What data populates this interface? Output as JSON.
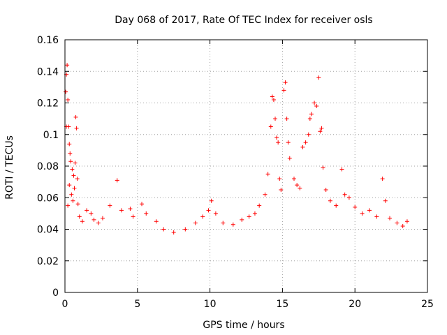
{
  "chart_data": {
    "type": "scatter",
    "title": "Day 068 of 2017, Rate Of TEC Index for receiver osls",
    "xlabel": "GPS time / hours",
    "ylabel": "ROTI / TECUs",
    "xlim": [
      0,
      25
    ],
    "ylim": [
      0,
      0.16
    ],
    "grid": true,
    "marker": "plus",
    "color": "#ff0000",
    "x_ticks": [
      {
        "value": 0,
        "label": "0"
      },
      {
        "value": 5,
        "label": "5"
      },
      {
        "value": 10,
        "label": "10"
      },
      {
        "value": 15,
        "label": "15"
      },
      {
        "value": 20,
        "label": "20"
      },
      {
        "value": 25,
        "label": "25"
      }
    ],
    "y_ticks": [
      {
        "value": 0,
        "label": "0"
      },
      {
        "value": 0.02,
        "label": "0.02"
      },
      {
        "value": 0.04,
        "label": "0.04"
      },
      {
        "value": 0.06,
        "label": "0.06"
      },
      {
        "value": 0.08,
        "label": "0.08"
      },
      {
        "value": 0.1,
        "label": "0.1"
      },
      {
        "value": 0.12,
        "label": "0.12"
      },
      {
        "value": 0.14,
        "label": "0.14"
      },
      {
        "value": 0.16,
        "label": "0.16"
      }
    ],
    "series": [
      {
        "name": "ROTI",
        "points": [
          [
            0.05,
            0.127
          ],
          [
            0.1,
            0.138
          ],
          [
            0.15,
            0.144
          ],
          [
            0.2,
            0.122
          ],
          [
            0.1,
            0.105
          ],
          [
            0.25,
            0.105
          ],
          [
            0.3,
            0.094
          ],
          [
            0.35,
            0.088
          ],
          [
            0.4,
            0.083
          ],
          [
            0.5,
            0.078
          ],
          [
            0.6,
            0.074
          ],
          [
            0.7,
            0.082
          ],
          [
            0.75,
            0.111
          ],
          [
            0.8,
            0.104
          ],
          [
            0.85,
            0.072
          ],
          [
            0.3,
            0.068
          ],
          [
            0.45,
            0.062
          ],
          [
            0.55,
            0.058
          ],
          [
            0.65,
            0.066
          ],
          [
            0.2,
            0.055
          ],
          [
            0.9,
            0.056
          ],
          [
            1.0,
            0.048
          ],
          [
            1.2,
            0.045
          ],
          [
            1.5,
            0.052
          ],
          [
            1.8,
            0.05
          ],
          [
            2.0,
            0.046
          ],
          [
            2.3,
            0.044
          ],
          [
            2.6,
            0.047
          ],
          [
            3.1,
            0.055
          ],
          [
            3.6,
            0.071
          ],
          [
            3.9,
            0.052
          ],
          [
            4.5,
            0.053
          ],
          [
            4.7,
            0.048
          ],
          [
            5.3,
            0.056
          ],
          [
            5.6,
            0.05
          ],
          [
            6.3,
            0.045
          ],
          [
            6.8,
            0.04
          ],
          [
            7.5,
            0.038
          ],
          [
            8.3,
            0.04
          ],
          [
            9.0,
            0.044
          ],
          [
            9.5,
            0.048
          ],
          [
            9.9,
            0.052
          ],
          [
            10.1,
            0.058
          ],
          [
            10.4,
            0.05
          ],
          [
            10.9,
            0.044
          ],
          [
            11.6,
            0.043
          ],
          [
            12.2,
            0.046
          ],
          [
            12.7,
            0.048
          ],
          [
            13.1,
            0.05
          ],
          [
            13.4,
            0.055
          ],
          [
            13.8,
            0.062
          ],
          [
            14.0,
            0.075
          ],
          [
            14.2,
            0.105
          ],
          [
            14.3,
            0.124
          ],
          [
            14.4,
            0.122
          ],
          [
            14.5,
            0.11
          ],
          [
            14.6,
            0.098
          ],
          [
            14.7,
            0.095
          ],
          [
            14.8,
            0.072
          ],
          [
            14.9,
            0.065
          ],
          [
            15.1,
            0.128
          ],
          [
            15.2,
            0.133
          ],
          [
            15.3,
            0.11
          ],
          [
            15.4,
            0.095
          ],
          [
            15.5,
            0.085
          ],
          [
            15.8,
            0.072
          ],
          [
            16.0,
            0.068
          ],
          [
            16.2,
            0.066
          ],
          [
            16.4,
            0.092
          ],
          [
            16.6,
            0.095
          ],
          [
            16.8,
            0.1
          ],
          [
            16.9,
            0.11
          ],
          [
            17.0,
            0.113
          ],
          [
            17.2,
            0.12
          ],
          [
            17.35,
            0.118
          ],
          [
            17.5,
            0.136
          ],
          [
            17.6,
            0.102
          ],
          [
            17.7,
            0.104
          ],
          [
            17.8,
            0.079
          ],
          [
            18.0,
            0.065
          ],
          [
            18.3,
            0.058
          ],
          [
            18.7,
            0.055
          ],
          [
            19.1,
            0.078
          ],
          [
            19.3,
            0.062
          ],
          [
            19.6,
            0.06
          ],
          [
            20.0,
            0.054
          ],
          [
            20.5,
            0.05
          ],
          [
            21.0,
            0.052
          ],
          [
            21.5,
            0.048
          ],
          [
            21.9,
            0.072
          ],
          [
            22.1,
            0.058
          ],
          [
            22.4,
            0.047
          ],
          [
            22.9,
            0.044
          ],
          [
            23.3,
            0.042
          ],
          [
            23.6,
            0.045
          ]
        ]
      }
    ]
  }
}
